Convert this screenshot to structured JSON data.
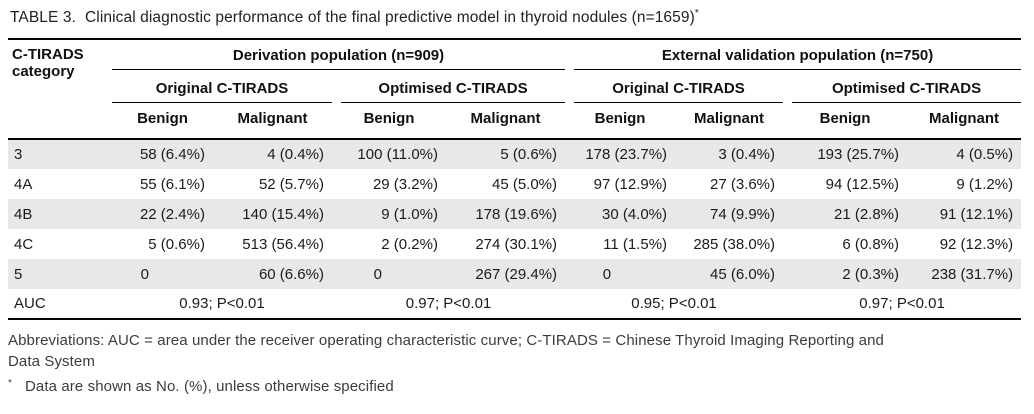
{
  "title": {
    "label": "TABLE 3.",
    "text": "Clinical diagnostic performance of the final predictive model in thyroid nodules (n=1659)",
    "footnote_marker": "*"
  },
  "table": {
    "corner_header": "C-TIRADS category",
    "groups": [
      {
        "label": "Derivation population (n=909)",
        "subgroups": [
          {
            "label": "Original C-TIRADS",
            "columns": [
              "Benign",
              "Malignant"
            ]
          },
          {
            "label": "Optimised C-TIRADS",
            "columns": [
              "Benign",
              "Malignant"
            ]
          }
        ]
      },
      {
        "label": "External validation population (n=750)",
        "subgroups": [
          {
            "label": "Original C-TIRADS",
            "columns": [
              "Benign",
              "Malignant"
            ]
          },
          {
            "label": "Optimised C-TIRADS",
            "columns": [
              "Benign",
              "Malignant"
            ]
          }
        ]
      }
    ],
    "rows": [
      {
        "category": "3",
        "shaded": true,
        "cells": [
          "58 (6.4%)",
          "4 (0.4%)",
          "100 (11.0%)",
          "5 (0.6%)",
          "178 (23.7%)",
          "3 (0.4%)",
          "193 (25.7%)",
          "4 (0.5%)"
        ]
      },
      {
        "category": "4A",
        "shaded": false,
        "cells": [
          "55 (6.1%)",
          "52 (5.7%)",
          "29 (3.2%)",
          "45 (5.0%)",
          "97 (12.9%)",
          "27 (3.6%)",
          "94 (12.5%)",
          "9 (1.2%)"
        ]
      },
      {
        "category": "4B",
        "shaded": true,
        "cells": [
          "22 (2.4%)",
          "140 (15.4%)",
          "9 (1.0%)",
          "178 (19.6%)",
          "30 (4.0%)",
          "74 (9.9%)",
          "21 (2.8%)",
          "91 (12.1%)"
        ]
      },
      {
        "category": "4C",
        "shaded": false,
        "cells": [
          "5 (0.6%)",
          "513 (56.4%)",
          "2 (0.2%)",
          "274 (30.1%)",
          "11 (1.5%)",
          "285 (38.0%)",
          "6 (0.8%)",
          "92 (12.3%)"
        ]
      },
      {
        "category": "5",
        "shaded": true,
        "cells": [
          "0",
          "60 (6.6%)",
          "0",
          "267 (29.4%)",
          "0",
          "45 (6.0%)",
          "2 (0.3%)",
          "238 (31.7%)"
        ]
      }
    ],
    "auc_row": {
      "category": "AUC",
      "values": [
        "0.93; P<0.01",
        "0.97; P<0.01",
        "0.95; P<0.01",
        "0.97; P<0.01"
      ]
    }
  },
  "footer": {
    "abbreviations_lines": [
      "Abbreviations: AUC = area under the receiver operating characteristic curve; C-TIRADS = Chinese Thyroid Imaging Reporting and",
      "Data System"
    ],
    "footnote_marker": "*",
    "footnote": "Data are shown as No. (%), unless otherwise specified"
  },
  "colors": {
    "row_shade": "#e8e8e8",
    "rule": "#000000",
    "text": "#1b1b1b",
    "secondary_text": "#3c3c3c"
  }
}
